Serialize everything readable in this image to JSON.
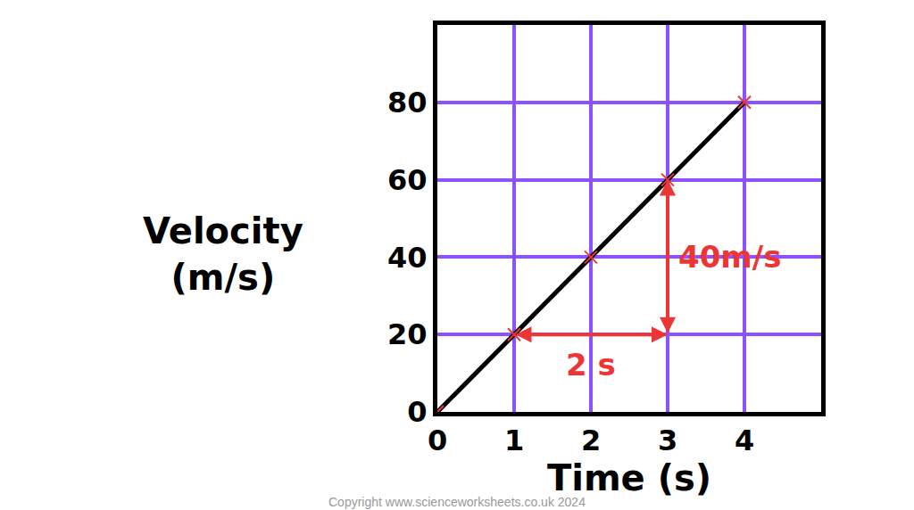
{
  "chart_data": {
    "type": "line",
    "xlabel": "Time (s)",
    "ylabel": "Velocity\n(m/s)",
    "x": [
      0,
      1,
      2,
      3,
      4
    ],
    "values": [
      0,
      20,
      40,
      60,
      80
    ],
    "color": "#000000",
    "marker": "x",
    "xlim": [
      0,
      5
    ],
    "ylim": [
      0,
      100
    ],
    "xticks": [
      0,
      1,
      2,
      3,
      4
    ],
    "yticks": [
      0,
      20,
      40,
      60,
      80
    ],
    "grid": true,
    "annotations": [
      {
        "text": "2 s",
        "from": [
          1,
          20
        ],
        "to": [
          3,
          20
        ],
        "color": "#ee3535"
      },
      {
        "text": "40m/s",
        "from": [
          3,
          20
        ],
        "to": [
          3,
          60
        ],
        "color": "#ee3535"
      }
    ],
    "footer": "Copyright www.scienceworksheets.co.uk 2024"
  }
}
